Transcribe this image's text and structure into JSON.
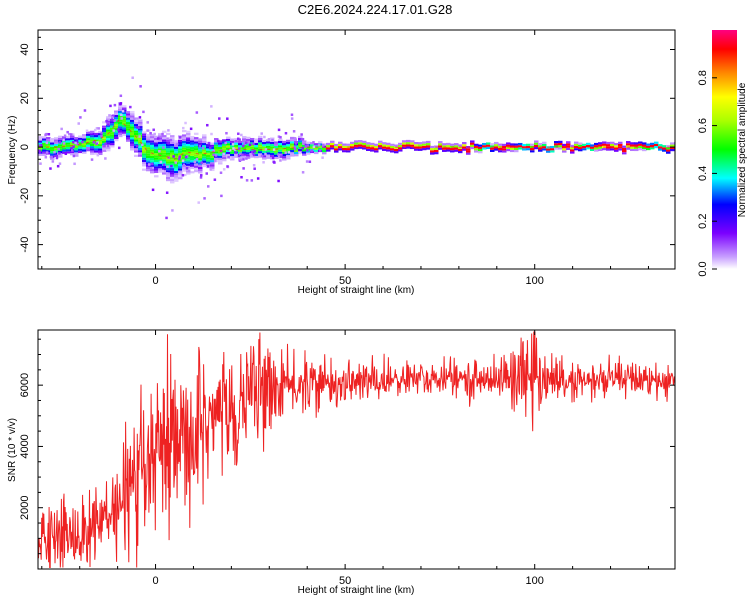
{
  "title": "C2E6.2024.224.17.01.G28",
  "colors": {
    "snr_line": "#ee2222",
    "frame": "#000000",
    "ridge": "#00dd55"
  },
  "chart_data": [
    {
      "type": "heatmap",
      "title": "C2E6.2024.224.17.01.G28",
      "xlabel": "Height of straight line (km)",
      "ylabel": "Frequency (Hz)",
      "xlim": [
        -31,
        137
      ],
      "ylim": [
        -50,
        48
      ],
      "xticks": [
        0,
        50,
        100
      ],
      "yticks": [
        -40,
        -20,
        0,
        20,
        40
      ],
      "grid": false,
      "colorbar": {
        "label": "Normalized spectral amplitude",
        "range": [
          0,
          1
        ],
        "ticks": [
          "0.0",
          "0.2",
          "0.4",
          "0.6",
          "0.8"
        ],
        "position": "right"
      },
      "ridge": {
        "x": [
          -31,
          -25,
          -20,
          -15,
          -12,
          -10,
          -8,
          -5,
          -2,
          0,
          3,
          5,
          8,
          12,
          15,
          20,
          25,
          30,
          35,
          40,
          45,
          60,
          80,
          100,
          120,
          137
        ],
        "frequency": [
          0,
          0,
          1,
          3,
          6,
          11,
          9,
          4,
          -2,
          -3,
          -4,
          -5,
          -2,
          -3,
          -2,
          -1,
          -1,
          -1,
          -0.5,
          0,
          0,
          0,
          0,
          0,
          0,
          0
        ],
        "spread": [
          3,
          3,
          3,
          4,
          5,
          5,
          5,
          6,
          6,
          6,
          7,
          7,
          6,
          5,
          4,
          3,
          3,
          3,
          3,
          2,
          1.5,
          1.5,
          1.5,
          2.5,
          1.5,
          2
        ]
      }
    },
    {
      "type": "line",
      "xlabel": "Height of straight line (km)",
      "ylabel": "SNR (10 * v/v)",
      "xlim": [
        -31,
        137
      ],
      "ylim": [
        0,
        7800
      ],
      "xticks": [
        0,
        50,
        100
      ],
      "yticks": [
        2000,
        4000,
        6000
      ],
      "grid": false,
      "envelope": {
        "x": [
          -31,
          -25,
          -20,
          -15,
          -10,
          -5,
          0,
          5,
          10,
          15,
          20,
          25,
          30,
          35,
          40,
          50,
          60,
          70,
          80,
          90,
          97,
          100,
          105,
          110,
          120,
          130,
          137
        ],
        "mean": [
          900,
          1100,
          1200,
          1400,
          1800,
          2600,
          3500,
          3700,
          4300,
          4800,
          5300,
          5700,
          5900,
          5950,
          6000,
          6100,
          6150,
          6200,
          6200,
          6200,
          6300,
          6100,
          6200,
          6100,
          6150,
          6200,
          6100
        ],
        "noise": [
          500,
          600,
          650,
          700,
          900,
          1100,
          1200,
          1300,
          1300,
          1200,
          1000,
          900,
          700,
          500,
          450,
          350,
          320,
          300,
          300,
          300,
          700,
          600,
          350,
          320,
          320,
          330,
          300
        ]
      }
    }
  ]
}
